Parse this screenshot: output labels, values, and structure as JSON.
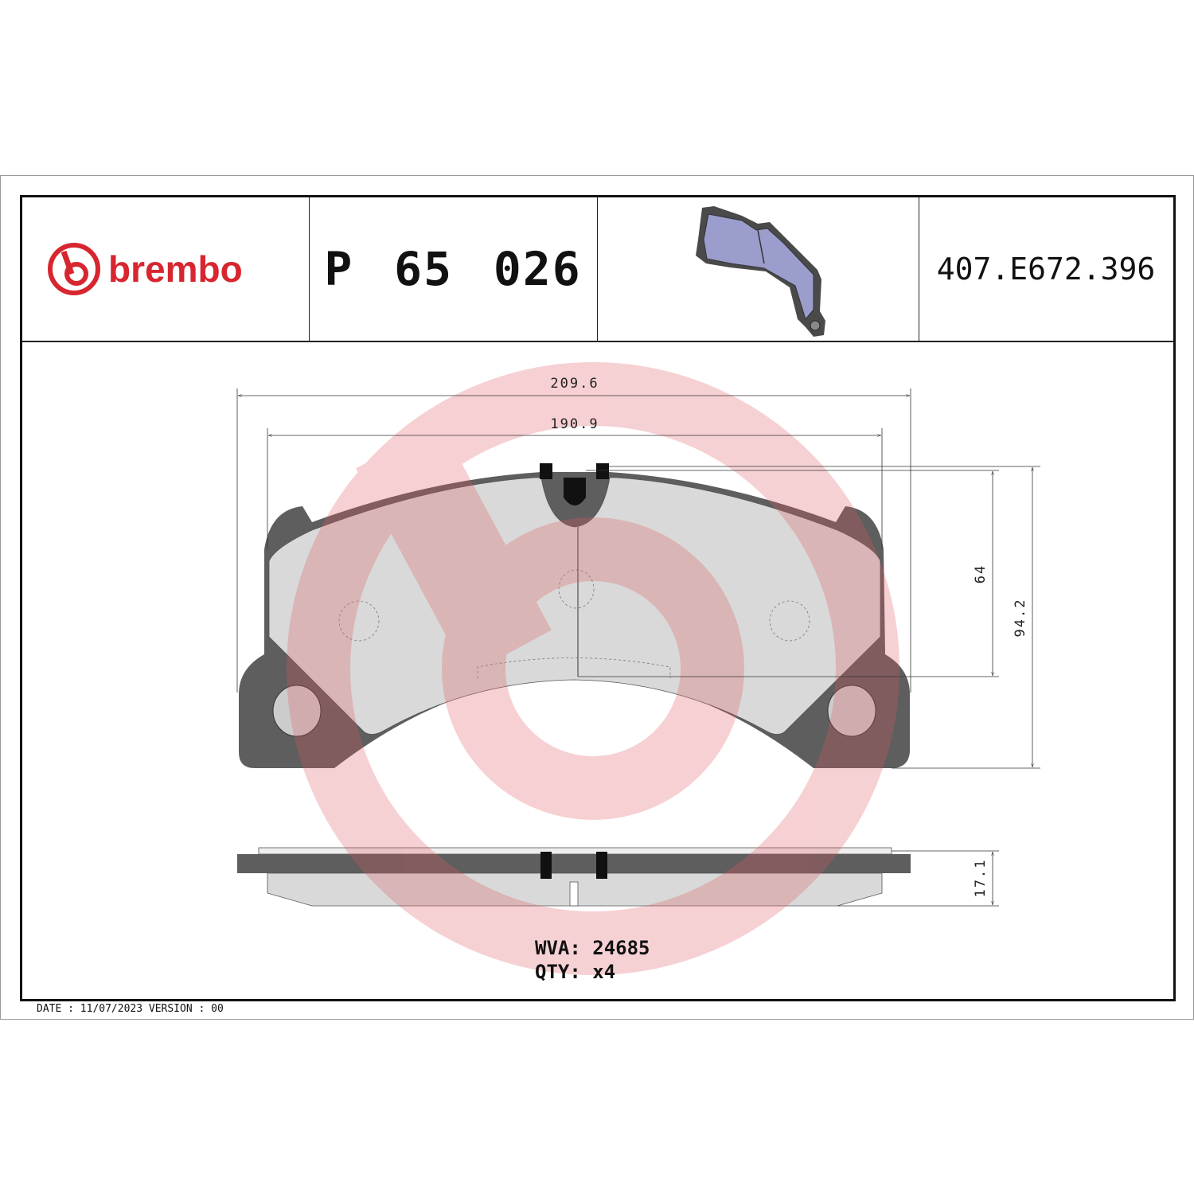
{
  "header": {
    "brand": "brembo",
    "part_number": "P 65 026",
    "reference": "407.E672.396",
    "brand_color": "#d7262f"
  },
  "dimensions": {
    "overall_width": "209.6",
    "friction_width": "190.9",
    "friction_height": "64",
    "overall_height": "94.2",
    "thickness": "17.1"
  },
  "info": {
    "wva_label": "WVA:",
    "wva_value": "24685",
    "qty_label": "QTY:",
    "qty_value": "x4"
  },
  "footer": {
    "text": "DATE : 11/07/2023 VERSION : 00"
  },
  "colors": {
    "backing_plate": "#5e5e5e",
    "friction_material": "#d9d9d9",
    "watermark": "#e8a8ab",
    "thumbnail_pad": "#9b9dcc"
  }
}
